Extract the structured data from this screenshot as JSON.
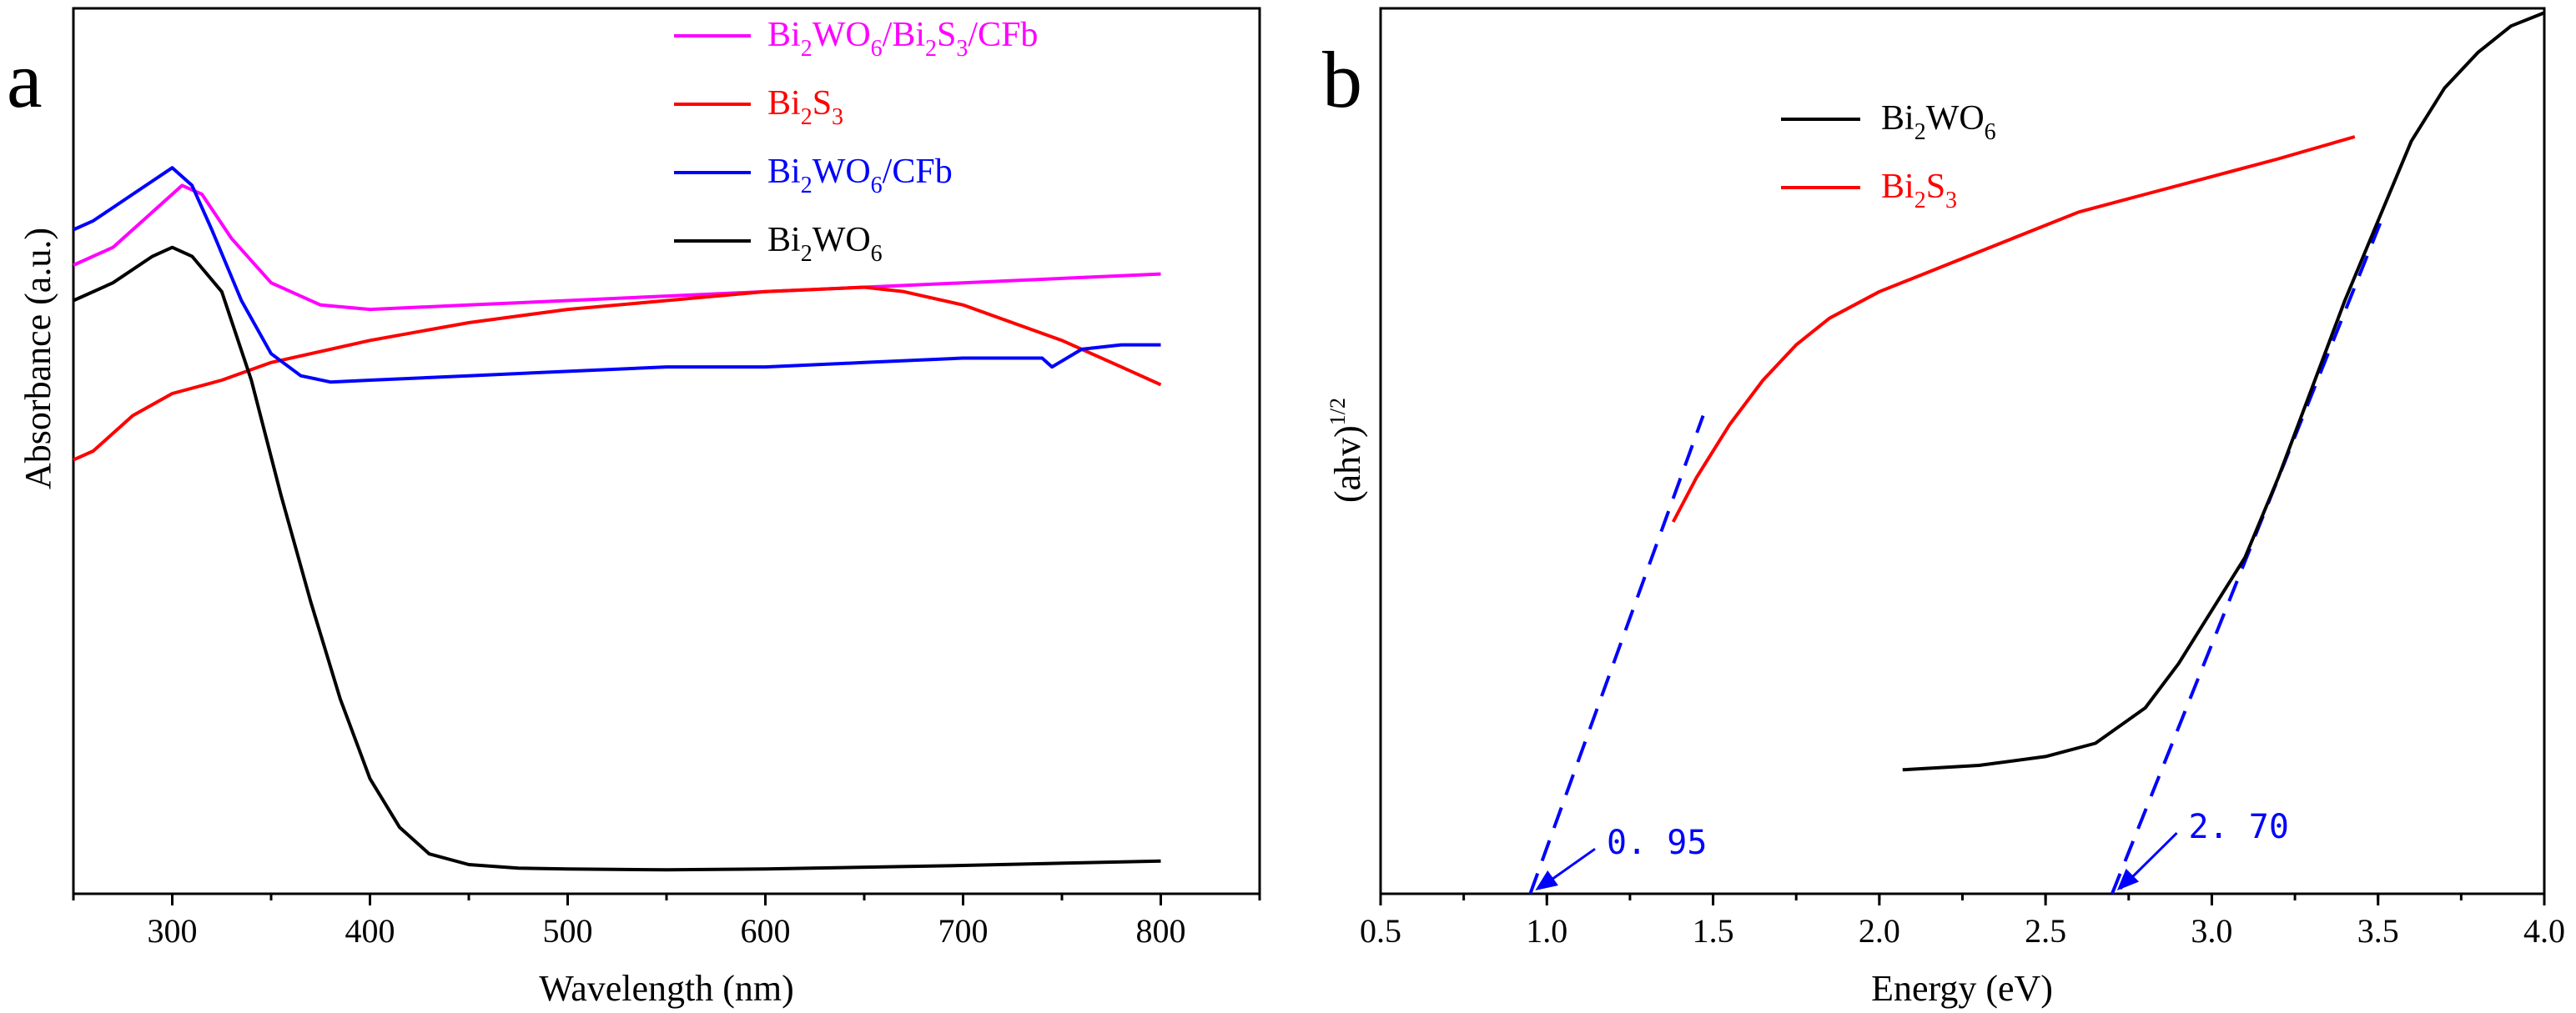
{
  "chart_data": [
    {
      "type": "line",
      "panel_label": "a",
      "xlabel": "Wavelength (nm)",
      "ylabel": "Absorbance (a.u.)",
      "xlim": [
        250,
        850
      ],
      "ylim": [
        0,
        1
      ],
      "xticks": [
        300,
        400,
        500,
        600,
        700,
        800
      ],
      "yticks_shown": false,
      "legend_position": "top-right",
      "series": [
        {
          "name": "Bi2WO6/Bi2S3/CFb",
          "legend": {
            "base": "Bi",
            "s1": "2",
            "mid": "WO",
            "s2": "6",
            "mid2": "/Bi",
            "s3": "2",
            "mid3": "S",
            "s4": "3",
            "tail": "/CFb"
          },
          "color": "#ff00ff",
          "x": [
            250,
            270,
            290,
            305,
            315,
            330,
            350,
            375,
            400,
            450,
            500,
            550,
            600,
            650,
            700,
            750,
            800
          ],
          "y": [
            0.71,
            0.73,
            0.77,
            0.8,
            0.79,
            0.74,
            0.69,
            0.665,
            0.66,
            0.665,
            0.67,
            0.675,
            0.68,
            0.685,
            0.69,
            0.695,
            0.7
          ]
        },
        {
          "name": "Bi2S3",
          "legend": {
            "base": "Bi",
            "s1": "2",
            "mid": "S",
            "s2": "3"
          },
          "color": "#ff0000",
          "x": [
            250,
            260,
            280,
            300,
            325,
            350,
            400,
            450,
            500,
            550,
            600,
            650,
            670,
            700,
            750,
            780,
            800
          ],
          "y": [
            0.49,
            0.5,
            0.54,
            0.565,
            0.58,
            0.6,
            0.625,
            0.645,
            0.66,
            0.67,
            0.68,
            0.685,
            0.68,
            0.665,
            0.625,
            0.595,
            0.575
          ]
        },
        {
          "name": "Bi2WO6/CFb",
          "legend": {
            "base": "Bi",
            "s1": "2",
            "mid": "WO",
            "s2": "6",
            "tail": "/CFb"
          },
          "color": "#0000ff",
          "x": [
            250,
            260,
            280,
            300,
            310,
            320,
            335,
            350,
            365,
            380,
            400,
            450,
            500,
            550,
            600,
            650,
            700,
            740,
            745,
            760,
            780,
            800
          ],
          "y": [
            0.75,
            0.76,
            0.79,
            0.82,
            0.8,
            0.75,
            0.67,
            0.61,
            0.585,
            0.578,
            0.58,
            0.585,
            0.59,
            0.595,
            0.595,
            0.6,
            0.605,
            0.605,
            0.595,
            0.615,
            0.62,
            0.62
          ]
        },
        {
          "name": "Bi2WO6",
          "legend": {
            "base": "Bi",
            "s1": "2",
            "mid": "WO",
            "s2": "6"
          },
          "color": "#000000",
          "x": [
            250,
            270,
            290,
            300,
            310,
            325,
            340,
            355,
            370,
            385,
            400,
            415,
            430,
            450,
            475,
            500,
            550,
            600,
            700,
            800
          ],
          "y": [
            0.67,
            0.69,
            0.72,
            0.73,
            0.72,
            0.68,
            0.58,
            0.45,
            0.33,
            0.22,
            0.13,
            0.075,
            0.045,
            0.033,
            0.029,
            0.028,
            0.027,
            0.028,
            0.032,
            0.037
          ]
        }
      ]
    },
    {
      "type": "line",
      "panel_label": "b",
      "xlabel": "Energy (eV)",
      "ylabel": "(ahv)",
      "ylabel_sup": "1/2",
      "xlim": [
        0.5,
        4.0
      ],
      "ylim": [
        0,
        1
      ],
      "xticks": [
        "0.5",
        "1.0",
        "1.5",
        "2.0",
        "2.5",
        "3.0",
        "3.5",
        "4.0"
      ],
      "yticks_shown": false,
      "legend_position": "top-left",
      "series": [
        {
          "name": "Bi2WO6",
          "legend": {
            "base": "Bi",
            "s1": "2",
            "mid": "WO",
            "s2": "6"
          },
          "color": "#000000",
          "x": [
            2.07,
            2.3,
            2.5,
            2.65,
            2.8,
            2.9,
            3.0,
            3.1,
            3.2,
            3.3,
            3.4,
            3.5,
            3.6,
            3.7,
            3.8,
            3.9,
            4.0
          ],
          "y": [
            0.14,
            0.145,
            0.155,
            0.17,
            0.21,
            0.26,
            0.32,
            0.38,
            0.47,
            0.57,
            0.67,
            0.76,
            0.85,
            0.91,
            0.95,
            0.98,
            0.995
          ]
        },
        {
          "name": "Bi2S3",
          "legend": {
            "base": "Bi",
            "s1": "2",
            "mid": "S",
            "s2": "3"
          },
          "color": "#ff0000",
          "x": [
            1.38,
            1.45,
            1.55,
            1.65,
            1.75,
            1.85,
            2.0,
            2.2,
            2.4,
            2.6,
            2.8,
            3.0,
            3.2,
            3.43
          ],
          "y": [
            0.42,
            0.47,
            0.53,
            0.58,
            0.62,
            0.65,
            0.68,
            0.71,
            0.74,
            0.77,
            0.79,
            0.81,
            0.83,
            0.855
          ]
        }
      ],
      "tangent_lines": [
        {
          "color": "#0000ff",
          "style": "dashed",
          "x": [
            0.95,
            1.47
          ],
          "y": [
            0.0,
            0.54
          ]
        },
        {
          "color": "#0000ff",
          "style": "dashed",
          "x": [
            2.7,
            3.52
          ],
          "y": [
            0.0,
            0.77
          ]
        }
      ],
      "annotations": [
        {
          "text": "0. 95",
          "point_x": 0.95,
          "point_y": 0.0,
          "label_x": 1.18,
          "label_y": 0.045,
          "color": "#0000ff"
        },
        {
          "text": "2. 70",
          "point_x": 2.7,
          "point_y": 0.0,
          "label_x": 2.93,
          "label_y": 0.063,
          "color": "#0000ff"
        }
      ]
    }
  ]
}
